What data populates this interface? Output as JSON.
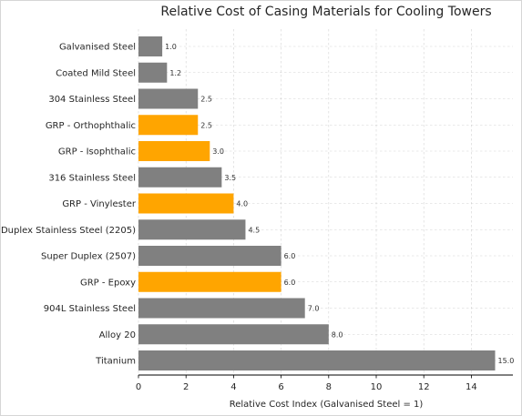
{
  "chart_data": {
    "type": "bar",
    "orientation": "horizontal",
    "title": "Relative Cost of Casing Materials for Cooling Towers",
    "xlabel": "Relative Cost Index (Galvanised Steel = 1)",
    "ylabel": "",
    "xlim": [
      0,
      15.75
    ],
    "xticks": [
      "0",
      "2",
      "4",
      "6",
      "8",
      "10",
      "12",
      "14"
    ],
    "grid": true,
    "categories": [
      "Galvanised Steel",
      "Coated Mild Steel",
      "304 Stainless Steel",
      "GRP - Orthophthalic",
      "GRP - Isophthalic",
      "316 Stainless Steel",
      "GRP - Vinylester",
      "Duplex Stainless Steel (2205)",
      "Super Duplex (2507)",
      "GRP - Epoxy",
      "904L Stainless Steel",
      "Alloy 20",
      "Titanium"
    ],
    "values": [
      1.0,
      1.2,
      2.5,
      2.5,
      3.0,
      3.5,
      4.0,
      4.5,
      6.0,
      6.0,
      7.0,
      8.0,
      15.0
    ],
    "value_labels": [
      "1.0",
      "1.2",
      "2.5",
      "2.5",
      "3.0",
      "3.5",
      "4.0",
      "4.5",
      "6.0",
      "6.0",
      "7.0",
      "8.0",
      "15.0"
    ],
    "bar_colors": [
      "#808080",
      "#808080",
      "#808080",
      "#FFA500",
      "#FFA500",
      "#808080",
      "#FFA500",
      "#808080",
      "#808080",
      "#FFA500",
      "#808080",
      "#808080",
      "#808080"
    ]
  }
}
